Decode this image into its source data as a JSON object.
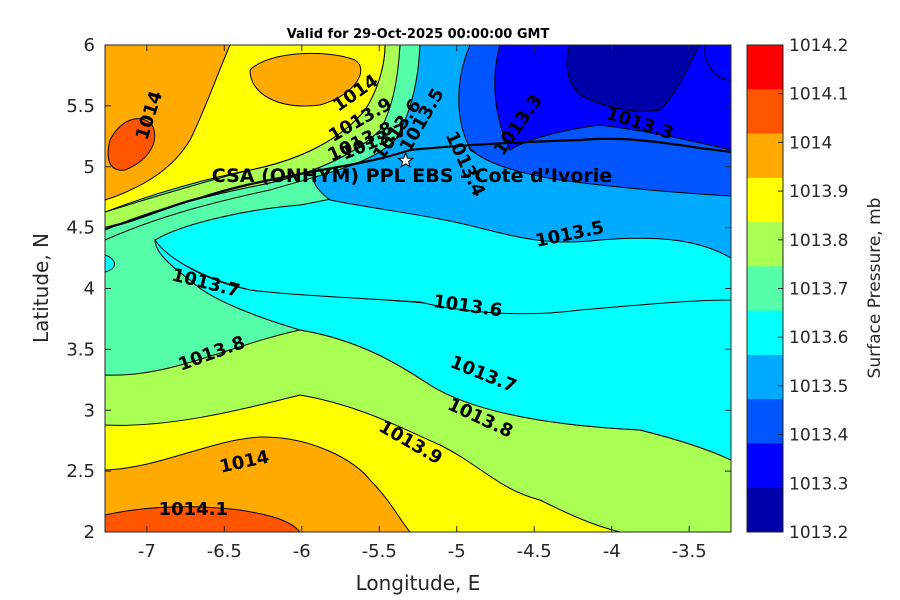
{
  "chart_data": {
    "type": "contour",
    "title": "Valid for 29-Oct-2025 00:00:00 GMT",
    "xlabel": "Longitude, E",
    "ylabel": "Latitude, N",
    "xlim": [
      -7.27,
      -3.23
    ],
    "ylim": [
      2,
      6
    ],
    "xticks": [
      "-7",
      "-6.5",
      "-6",
      "-5.5",
      "-5",
      "-4.5",
      "-4",
      "-3.5"
    ],
    "yticks": [
      "2",
      "2.5",
      "3",
      "3.5",
      "4",
      "4.5",
      "5",
      "5.5",
      "6"
    ],
    "colorbar": {
      "label": "Surface Pressure, mb",
      "ticks": [
        "1014.2",
        "1014.1",
        "1014",
        "1013.9",
        "1013.8",
        "1013.7",
        "1013.6",
        "1013.5",
        "1013.4",
        "1013.3",
        "1013.2"
      ],
      "colors": [
        "#ff0000",
        "#ff5500",
        "#ffaa00",
        "#ffff00",
        "#aaff55",
        "#55ffaa",
        "#00ffff",
        "#00aaff",
        "#0055ff",
        "#0000ff",
        "#0000aa"
      ]
    },
    "contour_labels": [
      {
        "text": "1014",
        "lon": -6.98,
        "lat": 5.42,
        "angle": -72
      },
      {
        "text": "1014",
        "lon": -5.65,
        "lat": 5.6,
        "angle": -35
      },
      {
        "text": "1014",
        "lon": -6.37,
        "lat": 2.57,
        "angle": -12
      },
      {
        "text": "1013.9",
        "lon": -5.62,
        "lat": 5.38,
        "angle": -30
      },
      {
        "text": "1013.9",
        "lon": -5.3,
        "lat": 2.73,
        "angle": 30
      },
      {
        "text": "1013.8",
        "lon": -5.62,
        "lat": 5.2,
        "angle": -25
      },
      {
        "text": "1013.8",
        "lon": -6.58,
        "lat": 3.46,
        "angle": -20
      },
      {
        "text": "1013.8",
        "lon": -4.85,
        "lat": 2.93,
        "angle": 25
      },
      {
        "text": "1013.7",
        "lon": -5.53,
        "lat": 5.2,
        "angle": -22
      },
      {
        "text": "1013.7",
        "lon": -6.62,
        "lat": 4.04,
        "angle": 14
      },
      {
        "text": "1013.7",
        "lon": -4.83,
        "lat": 3.29,
        "angle": 22
      },
      {
        "text": "1013.6",
        "lon": -5.38,
        "lat": 5.3,
        "angle": -55
      },
      {
        "text": "1013.6",
        "lon": -4.93,
        "lat": 3.85,
        "angle": 8
      },
      {
        "text": "1013.5",
        "lon": -5.22,
        "lat": 5.38,
        "angle": -60
      },
      {
        "text": "1013.5",
        "lon": -4.27,
        "lat": 4.44,
        "angle": -12
      },
      {
        "text": "1013.4",
        "lon": -4.95,
        "lat": 5.02,
        "angle": 65
      },
      {
        "text": "1013.3",
        "lon": -4.6,
        "lat": 5.34,
        "angle": -55
      },
      {
        "text": "1013.3",
        "lon": -3.82,
        "lat": 5.35,
        "angle": 18
      },
      {
        "text": "1014.1",
        "lon": -6.7,
        "lat": 2.18,
        "angle": 0
      }
    ],
    "station": {
      "name": "CSA (ONHYM) PPL EBS - Cote d’Ivorie",
      "lon": -5.33,
      "lat": 5.05
    },
    "grid": false
  }
}
